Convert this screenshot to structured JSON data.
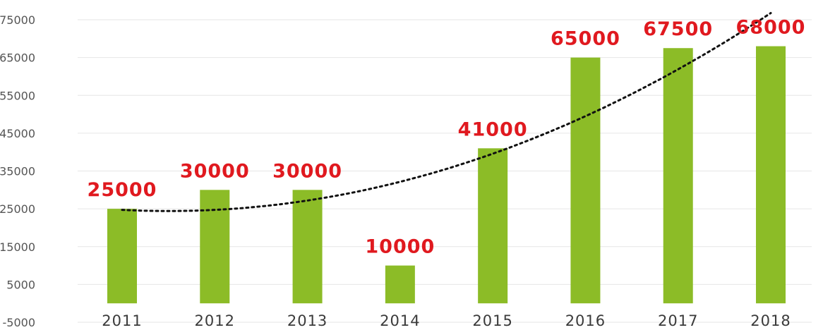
{
  "chart_data": {
    "type": "bar",
    "categories": [
      "2011",
      "2012",
      "2013",
      "2014",
      "2015",
      "2016",
      "2017",
      "2018"
    ],
    "values": [
      25000,
      30000,
      30000,
      10000,
      41000,
      65000,
      67500,
      68000
    ],
    "data_labels": [
      "25000",
      "30000",
      "30000",
      "10000",
      "41000",
      "65000",
      "67500",
      "68000"
    ],
    "y_ticks": [
      "-5000",
      "5000",
      "15000",
      "25000",
      "35000",
      "45000",
      "55000",
      "65000",
      "75000"
    ],
    "ylim": [
      -5000,
      75000
    ],
    "grid": true,
    "trendline": "polynomial (dotted)",
    "title": "",
    "xlabel": "",
    "ylabel": "",
    "colors": {
      "bar": "#8cbc27",
      "data_label": "#e0191f",
      "trendline": "#111111",
      "grid": "#e6e6e6"
    }
  }
}
